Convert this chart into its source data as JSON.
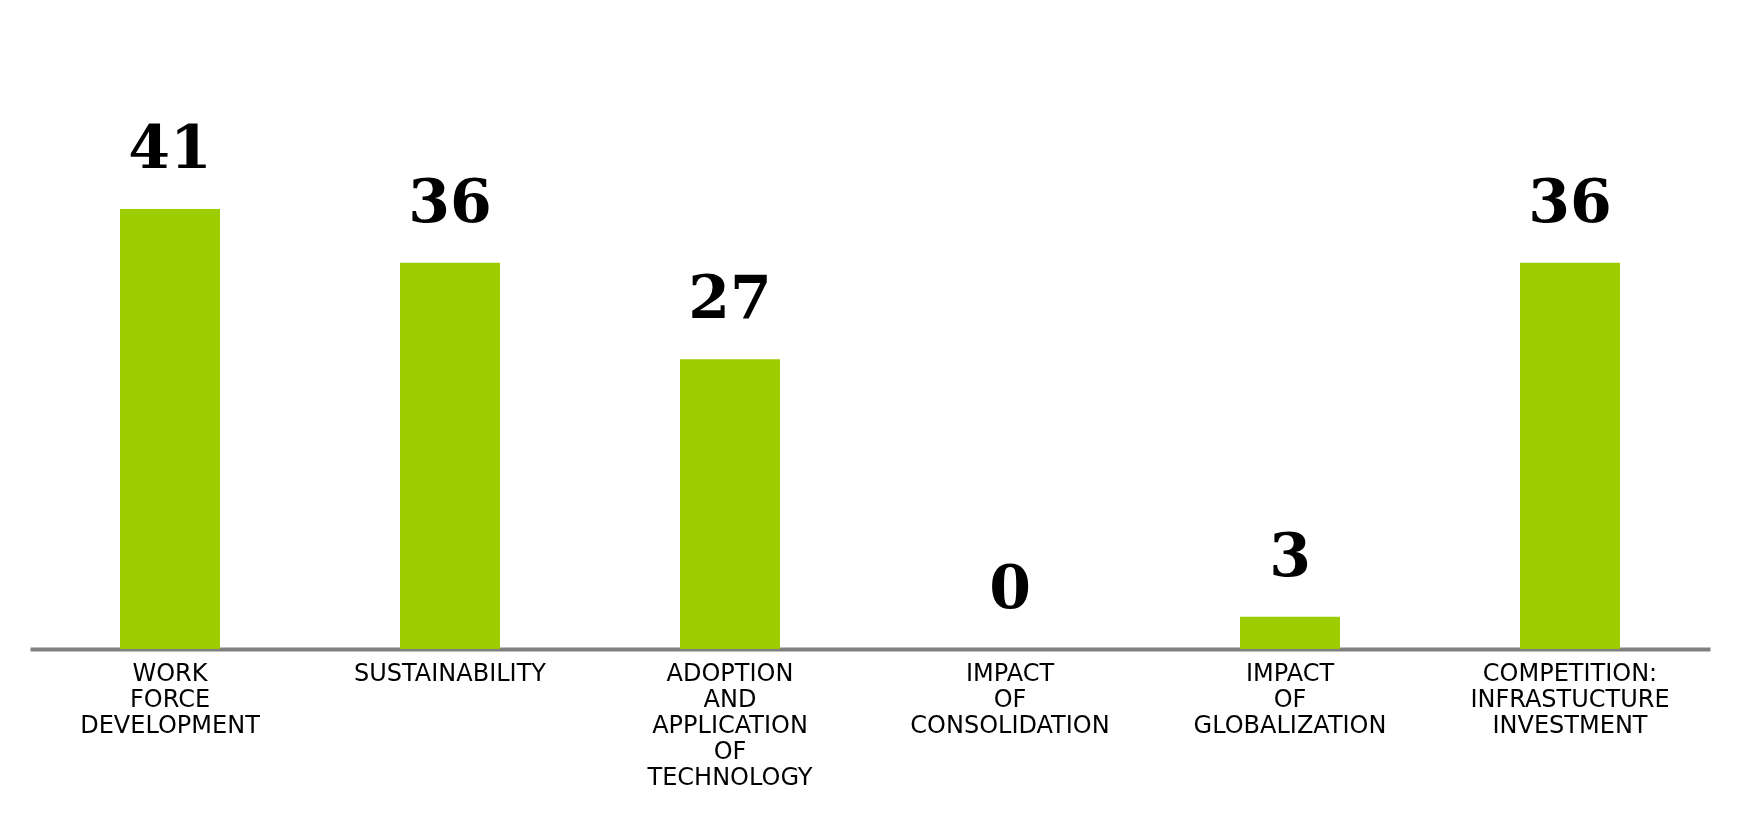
{
  "chart_data": {
    "type": "bar",
    "categories": [
      "WORK FORCE DEVELOPMENT",
      "SUSTAINABILITY",
      "ADOPTION AND APPLICATION OF TECHNOLOGY",
      "IMPACT OF CONSOLIDATION",
      "IMPACT OF GLOBALIZATION",
      "COMPETITION: INFRASTUCTURE INVESTMENT"
    ],
    "values": [
      41,
      36,
      27,
      0,
      3,
      36
    ],
    "color": "#9dcc00",
    "data_labels": true
  }
}
